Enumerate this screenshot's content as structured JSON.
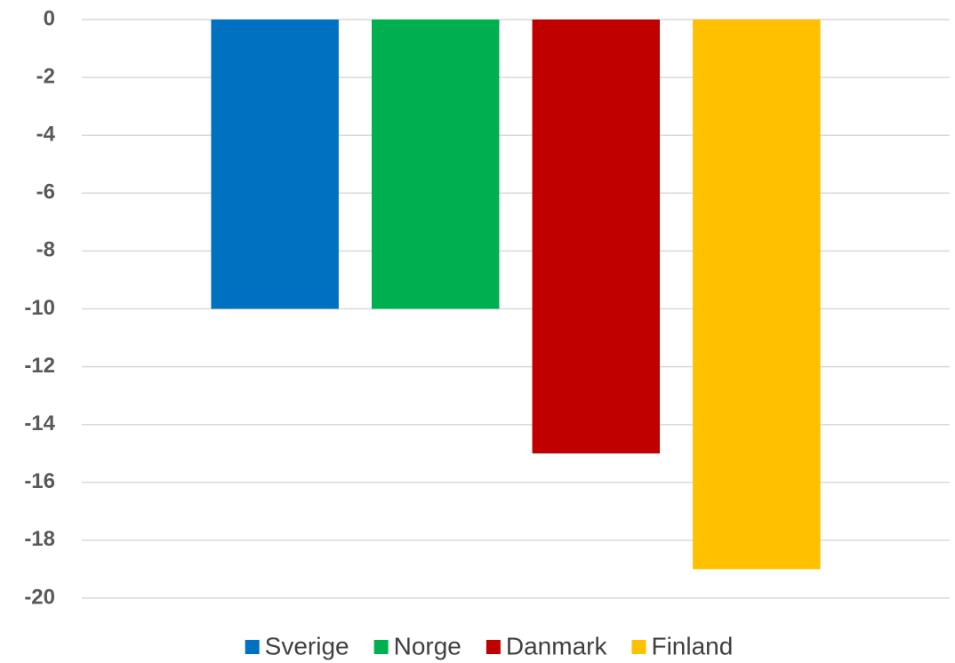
{
  "chart_data": {
    "type": "bar",
    "categories": [
      null
    ],
    "series": [
      {
        "name": "Sverige",
        "color": "#0070c0",
        "values": [
          -10
        ]
      },
      {
        "name": "Norge",
        "color": "#00b050",
        "values": [
          -10
        ]
      },
      {
        "name": "Danmark",
        "color": "#c00000",
        "values": [
          -15
        ]
      },
      {
        "name": "Finland",
        "color": "#ffc000",
        "values": [
          -19
        ]
      }
    ],
    "ylim": [
      -20,
      0
    ],
    "yticks": [
      0,
      -2,
      -4,
      -6,
      -8,
      -10,
      -12,
      -14,
      -16,
      -18,
      -20
    ],
    "grid": true,
    "legend": "bottom"
  }
}
